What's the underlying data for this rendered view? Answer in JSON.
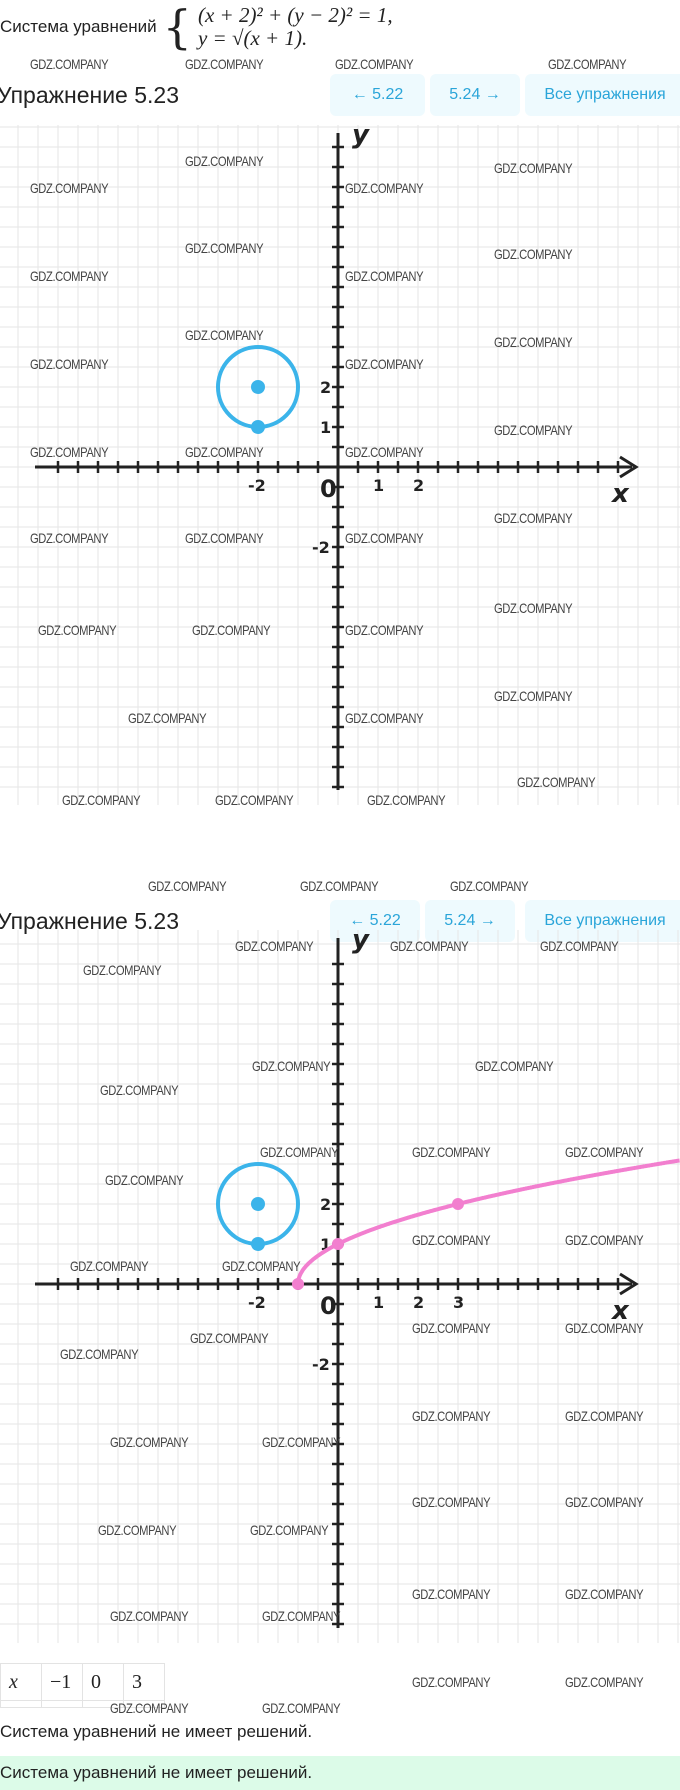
{
  "problem": {
    "label": "Система уравнений",
    "eq1": "(x + 2)² + (y − 2)² = 1,",
    "eq2": "y = √(x + 1)."
  },
  "header": {
    "title": "Упражнение 5.23",
    "prev_label": "← 5.22",
    "next_label": "5.24 →",
    "all_label": "Все упражнения"
  },
  "watermark": "GDZ.COMPANY",
  "colors": {
    "circle": "#3bb4ea",
    "curve": "#f27fcf",
    "accent": "#2aa5d9",
    "answer_bg": "#dcfbe8"
  },
  "graphs": [
    {
      "axis_x_label": "x",
      "axis_y_label": "y",
      "x_ticks": [
        "-2",
        "0",
        "1",
        "2"
      ],
      "y_ticks": [
        "2",
        "1",
        "-2"
      ],
      "circle": {
        "center": [
          -2,
          2
        ],
        "radius": 1
      },
      "points": [
        [
          -2,
          2
        ],
        [
          -2,
          1
        ]
      ]
    },
    {
      "axis_x_label": "x",
      "axis_y_label": "y",
      "x_ticks": [
        "-2",
        "0",
        "1",
        "2",
        "3"
      ],
      "y_ticks": [
        "2",
        "1",
        "-2"
      ],
      "circle": {
        "center": [
          -2,
          2
        ],
        "radius": 1
      },
      "points": [
        [
          -2,
          2
        ],
        [
          -2,
          1
        ]
      ],
      "curve": {
        "function": "y = sqrt(x + 1)",
        "points": [
          [
            -1,
            0
          ],
          [
            0,
            1
          ],
          [
            3,
            2
          ]
        ]
      }
    }
  ],
  "table": {
    "row1": [
      "x",
      "−1",
      "0",
      "3"
    ],
    "row2": [
      "",
      "",
      "",
      ""
    ]
  },
  "answer": "Система уравнений не имеет решений."
}
